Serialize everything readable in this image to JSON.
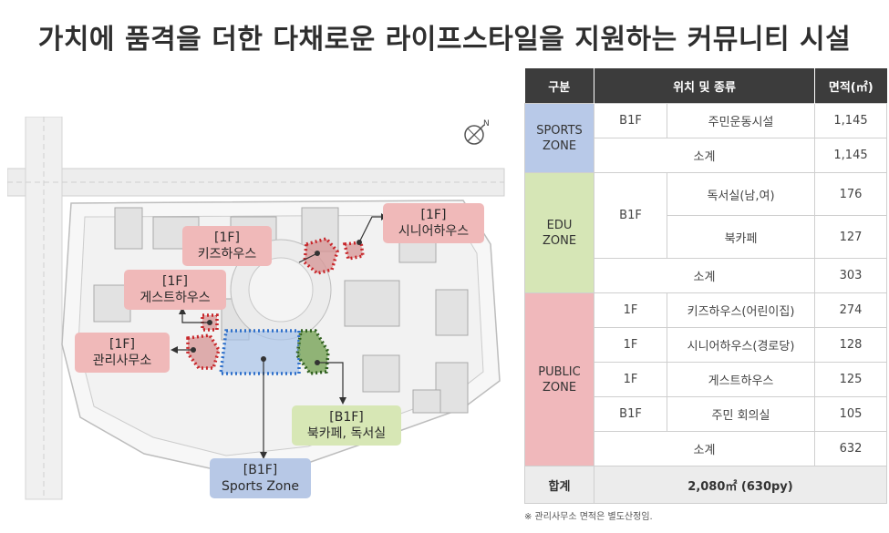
{
  "title": "가치에 품격을 더한 다채로운 라이프스타일을 지원하는 커뮤니티 시설",
  "map": {
    "labels": {
      "senior": [
        "[1F]",
        "시니어하우스"
      ],
      "kids": [
        "[1F]",
        "키즈하우스"
      ],
      "guest": [
        "[1F]",
        "게스트하우스"
      ],
      "office": [
        "[1F]",
        "관리사무소"
      ],
      "bookcafe": [
        "[B1F]",
        "북카페, 독서실"
      ],
      "sports": [
        "[B1F]",
        "Sports Zone"
      ]
    },
    "colors": {
      "pink": "#f0b9b9",
      "green": "#d7e7b5",
      "blue": "#b7c8e6",
      "dotted_red": "#c8262a",
      "dotted_blue": "#2e6fc9",
      "dotted_green": "#3d7a2a"
    }
  },
  "table": {
    "headers": [
      "구분",
      "위치 및 종류",
      "면적(㎡)"
    ],
    "sports": {
      "zone": [
        "SPORTS",
        "ZONE"
      ],
      "floor": "B1F",
      "name": "주민운동시설",
      "area": "1,145",
      "subtotal_label": "소계",
      "subtotal": "1,145"
    },
    "edu": {
      "zone": [
        "EDU",
        "ZONE"
      ],
      "floor": "B1F",
      "rows": [
        {
          "name": "독서실(남,여)",
          "area": "176"
        },
        {
          "name": "북카페",
          "area": "127"
        }
      ],
      "subtotal_label": "소계",
      "subtotal": "303"
    },
    "public": {
      "zone": [
        "PUBLIC",
        "ZONE"
      ],
      "rows": [
        {
          "floor": "1F",
          "name": "키즈하우스(어린이집)",
          "area": "274"
        },
        {
          "floor": "1F",
          "name": "시니어하우스(경로당)",
          "area": "128"
        },
        {
          "floor": "1F",
          "name": "게스트하우스",
          "area": "125"
        },
        {
          "floor": "B1F",
          "name": "주민 회의실",
          "area": "105"
        }
      ],
      "subtotal_label": "소계",
      "subtotal": "632"
    },
    "total_label": "합계",
    "total": "2,080㎡ (630py)"
  },
  "note": "※ 관리사무소 면적은 별도산정임."
}
